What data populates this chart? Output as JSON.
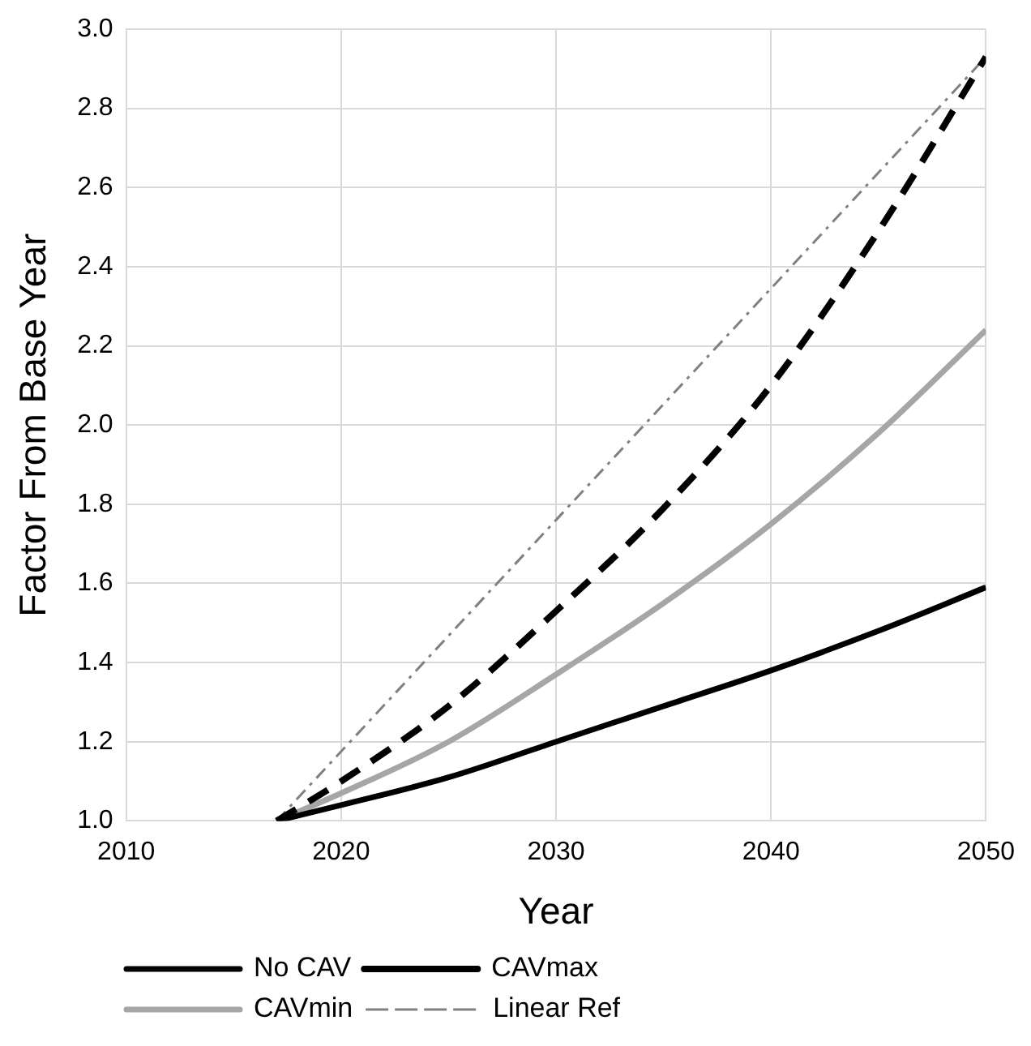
{
  "chart_data": {
    "type": "line",
    "xlabel": "Year",
    "ylabel": "Factor From Base Year",
    "xlim": [
      2010,
      2050
    ],
    "xticks": [
      2010,
      2020,
      2030,
      2040,
      2050
    ],
    "ylim": [
      1.0,
      3.0
    ],
    "yticks": [
      {
        "value": 1.0,
        "label": "1.0"
      },
      {
        "value": 1.2,
        "label": "1.2"
      },
      {
        "value": 1.4,
        "label": "1.4"
      },
      {
        "value": 1.6,
        "label": "1.6"
      },
      {
        "value": 1.8,
        "label": "1.8"
      },
      {
        "value": 2.0,
        "label": "2.0"
      },
      {
        "value": 2.2,
        "label": "2.2"
      },
      {
        "value": 2.4,
        "label": "2.4"
      },
      {
        "value": 2.6,
        "label": "2.6"
      },
      {
        "value": 2.8,
        "label": "2.8"
      },
      {
        "value": 3.0,
        "label": "3.0"
      }
    ],
    "grid": true,
    "legend": "bottom",
    "marker": "none",
    "series": [
      {
        "name": "No CAV",
        "color": "#000000",
        "line_style": "solid",
        "x": [
          2017,
          2020,
          2025,
          2030,
          2035,
          2040,
          2045,
          2050
        ],
        "values": [
          1.0,
          1.04,
          1.11,
          1.2,
          1.29,
          1.38,
          1.48,
          1.59
        ]
      },
      {
        "name": "CAVmax",
        "color": "#000000",
        "line_style": "dashed",
        "x": [
          2017,
          2020,
          2025,
          2030,
          2035,
          2040,
          2045,
          2050
        ],
        "values": [
          1.0,
          1.1,
          1.29,
          1.53,
          1.79,
          2.1,
          2.49,
          2.93
        ]
      },
      {
        "name": "CAVmin",
        "color": "#a6a6a6",
        "line_style": "solid",
        "x": [
          2017,
          2020,
          2025,
          2030,
          2035,
          2040,
          2045,
          2050
        ],
        "values": [
          1.0,
          1.07,
          1.2,
          1.37,
          1.55,
          1.75,
          1.98,
          2.24
        ]
      },
      {
        "name": "Linear Ref",
        "color": "#808080",
        "line_style": "dashdot",
        "x": [
          2017,
          2050
        ],
        "values": [
          1.0,
          2.93
        ]
      }
    ]
  }
}
